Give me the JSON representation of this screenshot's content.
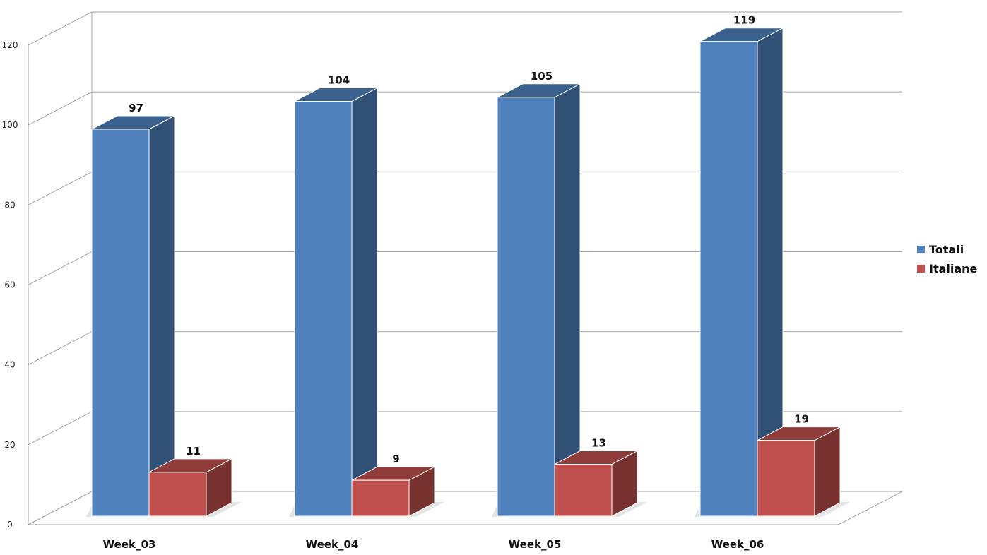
{
  "chart_data": {
    "type": "bar",
    "title": "",
    "xlabel": "",
    "ylabel": "",
    "categories": [
      "Week_03",
      "Week_04",
      "Week_05",
      "Week_06"
    ],
    "series": [
      {
        "name": "Totali",
        "values": [
          97,
          104,
          105,
          119
        ],
        "color": "#4F81BD"
      },
      {
        "name": "Italiane",
        "values": [
          11,
          9,
          13,
          19
        ],
        "color": "#C0504D"
      }
    ],
    "ylim": [
      0,
      120
    ],
    "yticks": [
      "0",
      "20",
      "40",
      "60",
      "80",
      "100",
      "120"
    ],
    "grid": true,
    "legend_position": "right",
    "style": "3d-column"
  }
}
